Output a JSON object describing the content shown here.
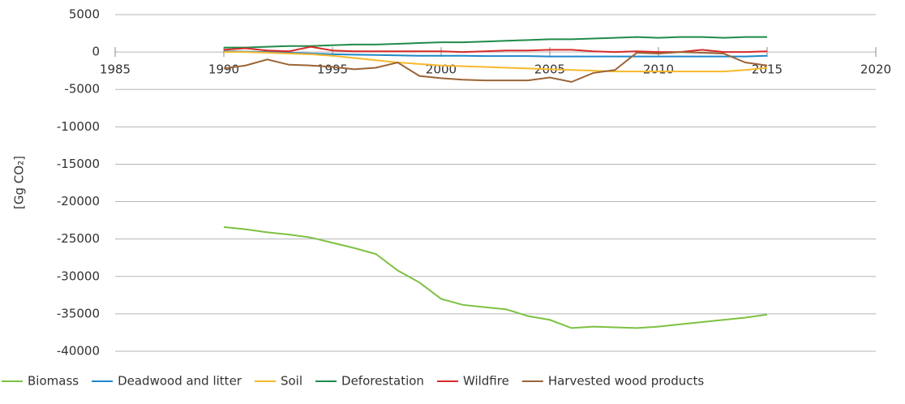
{
  "chart_data": {
    "type": "line",
    "y_label": "[Gg CO₂]",
    "x": [
      1990,
      1991,
      1992,
      1993,
      1994,
      1995,
      1996,
      1997,
      1998,
      1999,
      2000,
      2001,
      2002,
      2003,
      2004,
      2005,
      2006,
      2007,
      2008,
      2009,
      2010,
      2011,
      2012,
      2013,
      2014,
      2015
    ],
    "xlim": [
      1985,
      2020
    ],
    "xticks": [
      1985,
      1990,
      1995,
      2000,
      2005,
      2010,
      2015,
      2020
    ],
    "ylim": [
      -40000,
      5000
    ],
    "yticks": [
      -40000,
      -35000,
      -30000,
      -25000,
      -20000,
      -15000,
      -10000,
      -5000,
      0,
      5000
    ],
    "grid": true,
    "legend": "bottom",
    "series": [
      {
        "name": "Biomass",
        "color": "#7dc142",
        "values": [
          -23400,
          -23700,
          -24100,
          -24400,
          -24800,
          -25500,
          -26200,
          -27000,
          -29200,
          -30800,
          -33000,
          -33800,
          -34100,
          -34400,
          -35300,
          -35800,
          -36900,
          -36700,
          -36800,
          -36900,
          -36700,
          -36400,
          -36100,
          -35800,
          -35500,
          -35100
        ]
      },
      {
        "name": "Deadwood and litter",
        "color": "#1f87c8",
        "values": [
          100,
          50,
          0,
          -100,
          -200,
          -300,
          -350,
          -400,
          -450,
          -500,
          -500,
          -500,
          -550,
          -550,
          -550,
          -600,
          -600,
          -600,
          -600,
          -600,
          -600,
          -600,
          -600,
          -600,
          -600,
          -500
        ]
      },
      {
        "name": "Soil",
        "color": "#f6b92b",
        "values": [
          0,
          0,
          -100,
          -200,
          -300,
          -500,
          -800,
          -1100,
          -1400,
          -1600,
          -1800,
          -1900,
          -2000,
          -2100,
          -2200,
          -2300,
          -2400,
          -2500,
          -2600,
          -2600,
          -2600,
          -2600,
          -2600,
          -2600,
          -2400,
          -2100
        ]
      },
      {
        "name": "Deforestation",
        "color": "#1e8c4a",
        "values": [
          600,
          600,
          700,
          800,
          800,
          900,
          1000,
          1000,
          1100,
          1200,
          1300,
          1300,
          1400,
          1500,
          1600,
          1700,
          1700,
          1800,
          1900,
          2000,
          1900,
          2000,
          2000,
          1900,
          2000,
          2000
        ]
      },
      {
        "name": "Wildfire",
        "color": "#d72b2b",
        "values": [
          300,
          500,
          200,
          100,
          700,
          200,
          100,
          100,
          100,
          100,
          100,
          0,
          100,
          200,
          200,
          300,
          300,
          100,
          0,
          100,
          0,
          0,
          300,
          0,
          0,
          100
        ]
      },
      {
        "name": "Harvested wood products",
        "color": "#9b6437",
        "values": [
          -2200,
          -1800,
          -1000,
          -1700,
          -1800,
          -2000,
          -2300,
          -2100,
          -1400,
          -3200,
          -3500,
          -3700,
          -3800,
          -3800,
          -3800,
          -3400,
          -4000,
          -2800,
          -2400,
          -100,
          -200,
          0,
          -100,
          -200,
          -1400,
          -1800
        ]
      }
    ]
  }
}
